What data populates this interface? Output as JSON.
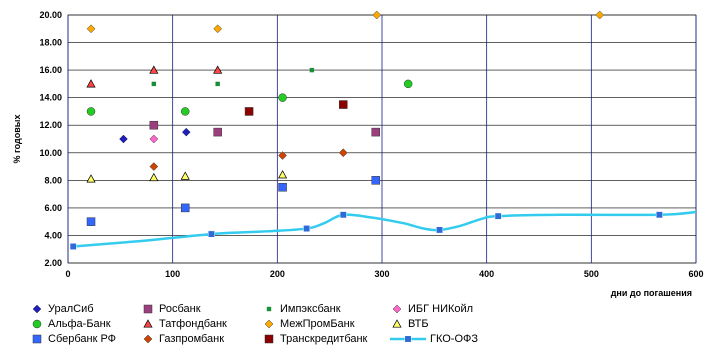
{
  "chart_data": {
    "type": "scatter",
    "xlabel": "дни до погашения",
    "ylabel": "% годовых",
    "xlim": [
      0,
      600
    ],
    "ylim": [
      2,
      20
    ],
    "x_ticks": [
      "0",
      "100",
      "200",
      "300",
      "400",
      "500",
      "600"
    ],
    "y_ticks": [
      "2.00",
      "4.00",
      "6.00",
      "8.00",
      "10.00",
      "12.00",
      "14.00",
      "16.00",
      "18.00",
      "20.00"
    ],
    "grid": "major x and y",
    "legend_position": "bottom",
    "series": [
      {
        "name": "УралСиб",
        "marker": "diamond",
        "color": "#1f1fbf",
        "points": [
          [
            53,
            11.0
          ],
          [
            113,
            11.5
          ]
        ]
      },
      {
        "name": "Росбанк",
        "marker": "square",
        "color": "#9b3f7f",
        "points": [
          [
            82,
            12.0
          ],
          [
            143,
            11.5
          ],
          [
            294,
            11.5
          ]
        ]
      },
      {
        "name": "Импэксбанк",
        "marker": "small-square",
        "color": "#1a8f3a",
        "points": [
          [
            82,
            15.0
          ],
          [
            143,
            15.0
          ],
          [
            233,
            16.0
          ]
        ]
      },
      {
        "name": "ИБГ НИКойл",
        "marker": "diamond",
        "color": "#ff66cc",
        "points": [
          [
            82,
            11.0
          ]
        ]
      },
      {
        "name": "Альфа-Банк",
        "marker": "circle",
        "color": "#22cc22",
        "points": [
          [
            22,
            13.0
          ],
          [
            112,
            13.0
          ],
          [
            205,
            14.0
          ],
          [
            325,
            15.0
          ]
        ]
      },
      {
        "name": "Татфондбанк",
        "marker": "triangle",
        "color": "#ff4444",
        "points": [
          [
            22,
            15.0
          ],
          [
            82,
            16.0
          ],
          [
            143,
            16.0
          ]
        ]
      },
      {
        "name": "МежПромБанк",
        "marker": "diamond",
        "color": "#ffaa00",
        "points": [
          [
            22,
            19.0
          ],
          [
            143,
            19.0
          ],
          [
            295,
            20.0
          ],
          [
            508,
            20.0
          ]
        ]
      },
      {
        "name": "ВТБ",
        "marker": "triangle",
        "color": "#ffff66",
        "points": [
          [
            22,
            8.1
          ],
          [
            82,
            8.2
          ],
          [
            112,
            8.3
          ],
          [
            205,
            8.4
          ]
        ]
      },
      {
        "name": "Сбербанк РФ",
        "marker": "square",
        "color": "#3366ff",
        "points": [
          [
            22,
            5.0
          ],
          [
            112,
            6.0
          ],
          [
            205,
            7.5
          ],
          [
            294,
            8.0
          ]
        ]
      },
      {
        "name": "Газпромбанк",
        "marker": "diamond",
        "color": "#cc4400",
        "points": [
          [
            82,
            9.0
          ],
          [
            205,
            9.8
          ],
          [
            263,
            10.0
          ]
        ]
      },
      {
        "name": "Транскредитбанк",
        "marker": "square",
        "color": "#8b0000",
        "points": [
          [
            173,
            13.0
          ],
          [
            263,
            13.5
          ]
        ]
      },
      {
        "name": "ГКО-ОФЗ",
        "marker": "square-line",
        "color": "#33ccee",
        "points": [
          [
            5,
            3.2
          ],
          [
            137,
            4.1
          ],
          [
            228,
            4.5
          ],
          [
            263,
            5.5
          ],
          [
            355,
            4.4
          ],
          [
            411,
            5.4
          ],
          [
            565,
            5.5
          ]
        ],
        "curve": [
          [
            5,
            3.2
          ],
          [
            70,
            3.6
          ],
          [
            137,
            4.1
          ],
          [
            190,
            4.3
          ],
          [
            228,
            4.5
          ],
          [
            245,
            4.9
          ],
          [
            263,
            5.5
          ],
          [
            290,
            5.3
          ],
          [
            320,
            4.9
          ],
          [
            340,
            4.5
          ],
          [
            355,
            4.4
          ],
          [
            375,
            4.7
          ],
          [
            395,
            5.2
          ],
          [
            411,
            5.4
          ],
          [
            470,
            5.5
          ],
          [
            565,
            5.5
          ],
          [
            600,
            5.7
          ]
        ]
      }
    ]
  }
}
